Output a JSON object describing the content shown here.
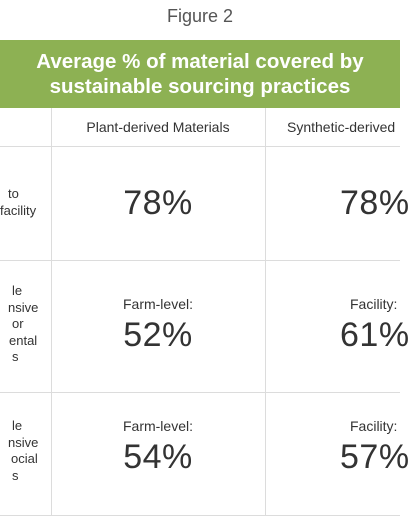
{
  "figure_label": "Figure 2",
  "banner": {
    "line1": "Average % of material covered by",
    "line2": "sustainable sourcing practices"
  },
  "columns": {
    "plant": "Plant-derived Materials",
    "synthetic": "Synthetic-derived"
  },
  "rows": [
    {
      "label_lines": [
        "to",
        "facility"
      ],
      "plant": {
        "sub": "",
        "value": "78%"
      },
      "synthetic": {
        "sub": "",
        "value": "78%"
      }
    },
    {
      "label_lines": [
        "le",
        "nsive",
        "or",
        "ental",
        "s"
      ],
      "plant": {
        "sub": "Farm-level:",
        "value": "52%"
      },
      "synthetic": {
        "sub": "Facility:",
        "value": "61%"
      }
    },
    {
      "label_lines": [
        "le",
        "nsive",
        "ocial",
        "s"
      ],
      "plant": {
        "sub": "Farm-level:",
        "value": "54%"
      },
      "synthetic": {
        "sub": "Facility:",
        "value": "57%"
      }
    }
  ]
}
